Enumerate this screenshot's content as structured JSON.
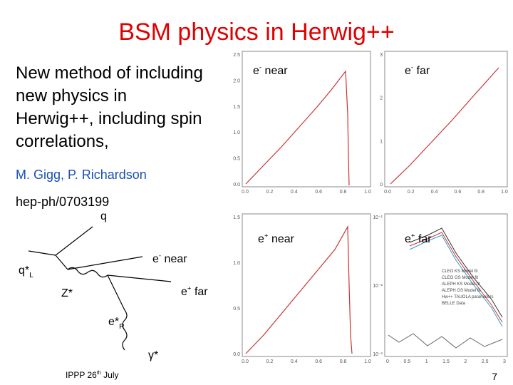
{
  "title": "BSM physics in Herwig++",
  "body": {
    "lines": [
      "New method of including",
      "new physics in",
      "Herwig++, including spin",
      "correlations,"
    ],
    "authors": "M. Gigg, P. Richardson",
    "reference": "hep-ph/0703199"
  },
  "diagram": {
    "q": "q",
    "qstar": {
      "base": "q*",
      "sub": "L"
    },
    "e_near": {
      "base": "e",
      "sup": "-",
      "rest": " near"
    },
    "zstar": "Z*",
    "e_far": {
      "base": "e",
      "sup": "+",
      "rest": " far"
    },
    "estar": {
      "base": "e*",
      "sub": "R"
    },
    "gamma": "γ*"
  },
  "plots": [
    {
      "label": {
        "base": "e",
        "sup": "-",
        "rest": " near"
      },
      "yticks": [
        "2.5",
        "2.0",
        "1.5",
        "1.0",
        "0.5",
        "0.0"
      ],
      "xticks": [
        "0.0",
        "0.2",
        "0.4",
        "0.6",
        "0.8",
        "1.0"
      ]
    },
    {
      "label": {
        "base": "e",
        "sup": "-",
        "rest": " far"
      },
      "yticks": [
        "3",
        "2",
        "1",
        "0"
      ],
      "xticks": [
        "0.0",
        "0.2",
        "0.4",
        "0.6",
        "0.8",
        "1.0"
      ]
    },
    {
      "label": {
        "base": "e",
        "sup": "+",
        "rest": " near"
      },
      "yticks": [
        "1.5",
        "1.0",
        "0.5",
        "0.0"
      ],
      "xticks": [
        "0.0",
        "0.2",
        "0.4",
        "0.6",
        "0.8",
        "1.0"
      ]
    },
    {
      "label": {
        "base": "e",
        "sup": "+",
        "rest": " far"
      },
      "yticks": [
        "10⁻¹",
        "10⁻²",
        "10⁻³"
      ],
      "xticks": [
        "0",
        "0.5",
        "1",
        "1.5",
        "2",
        "2.5",
        "3"
      ],
      "legend": [
        "CLEO KS Model fit",
        "CLEO GS Model fit",
        "ALEPH KS Model fit",
        "ALEPH GS Model fit",
        "Hw++ TAUOLA parameters",
        "BELLE Data"
      ]
    }
  ],
  "footer": {
    "base": "IPPP 26",
    "sup": "th",
    "rest": " July"
  },
  "page_number": "7"
}
